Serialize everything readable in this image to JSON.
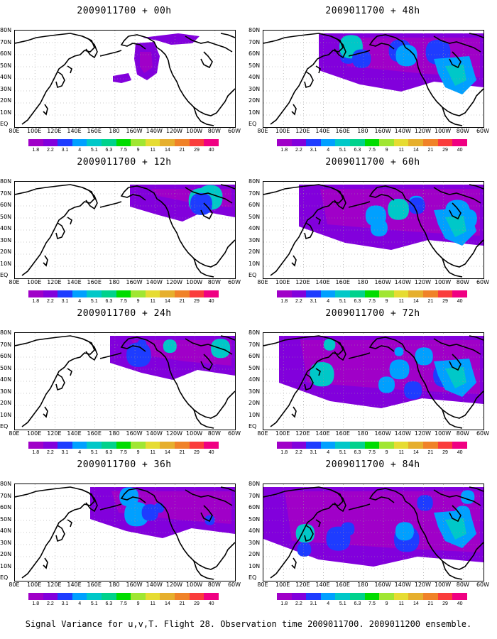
{
  "panels": [
    {
      "title": "2009011700 + 00h",
      "col": 0,
      "row": 0,
      "level": 0
    },
    {
      "title": "2009011700 + 48h",
      "col": 1,
      "row": 0,
      "level": 4
    },
    {
      "title": "2009011700 + 12h",
      "col": 0,
      "row": 1,
      "level": 1
    },
    {
      "title": "2009011700 + 60h",
      "col": 1,
      "row": 1,
      "level": 5
    },
    {
      "title": "2009011700 + 24h",
      "col": 0,
      "row": 2,
      "level": 2
    },
    {
      "title": "2009011700 + 72h",
      "col": 1,
      "row": 2,
      "level": 6
    },
    {
      "title": "2009011700 + 36h",
      "col": 0,
      "row": 3,
      "level": 3
    },
    {
      "title": "2009011700 + 84h",
      "col": 1,
      "row": 3,
      "level": 7
    }
  ],
  "lat_labels": [
    "80N",
    "70N",
    "60N",
    "50N",
    "40N",
    "30N",
    "20N",
    "10N",
    "EQ"
  ],
  "lon_labels": [
    "80E",
    "100E",
    "120E",
    "140E",
    "160E",
    "180",
    "160W",
    "140W",
    "120W",
    "100W",
    "80W",
    "60W"
  ],
  "colorbar": {
    "labels": [
      "1.8",
      "2.2",
      "3.1",
      "4",
      "5.1",
      "6.3",
      "7.5",
      "9",
      "11",
      "14",
      "21",
      "29",
      "40"
    ],
    "colors": [
      "#a000c8",
      "#8200dc",
      "#1e3cff",
      "#00a0ff",
      "#00c8c8",
      "#00d28c",
      "#00dc00",
      "#a0e632",
      "#e6dc32",
      "#e6af2d",
      "#f08228",
      "#fa3c3c",
      "#f00082"
    ]
  },
  "caption": "Signal Variance for u,v,T. Flight 28. Observation time 2009011700. 2009011200 ensemble."
}
